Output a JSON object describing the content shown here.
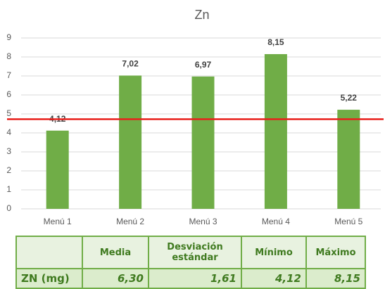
{
  "chart_data": {
    "type": "bar",
    "title": "Zn",
    "categories": [
      "Menú 1",
      "Menú 2",
      "Menú 3",
      "Menú 4",
      "Menú 5"
    ],
    "values": [
      4.12,
      7.02,
      6.97,
      8.15,
      5.22
    ],
    "value_labels": [
      "4,12",
      "7,02",
      "6,97",
      "8,15",
      "5,22"
    ],
    "color": "#70ad47",
    "ylim": [
      0,
      9
    ],
    "yticks": [
      0,
      1,
      2,
      3,
      4,
      5,
      6,
      7,
      8,
      9
    ],
    "grid": true,
    "reference_line": {
      "value": 4.72,
      "color": "#e8201c"
    }
  },
  "table": {
    "header": [
      "Media",
      "Desviación estándar",
      "Mínimo",
      "Máximo"
    ],
    "rows": [
      [
        "ZN (mg)",
        "6,30",
        "1,61",
        "4,12",
        "8,15"
      ]
    ]
  }
}
